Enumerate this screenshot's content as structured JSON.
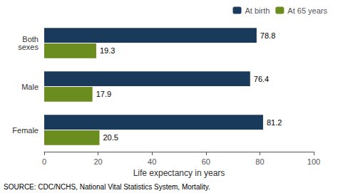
{
  "chart_data": {
    "type": "bar",
    "orientation": "horizontal",
    "categories": [
      "Female",
      "Male",
      "Both\nsexes"
    ],
    "series": [
      {
        "name": "At birth",
        "color": "#1a3a5c",
        "values": [
          81.2,
          76.4,
          78.8
        ]
      },
      {
        "name": "At 65 years",
        "color": "#6b8c1e",
        "values": [
          20.5,
          17.9,
          19.3
        ]
      }
    ],
    "xlim": [
      0,
      100
    ],
    "xticks": [
      0,
      20,
      40,
      60,
      80,
      100
    ],
    "xlabel": "Life expectancy in years",
    "legend": "upper right",
    "data_labels": true,
    "grid": false,
    "annotations": [
      "SOURCE: CDC/NCHS, National Vital Statistics System, Mortality."
    ]
  }
}
